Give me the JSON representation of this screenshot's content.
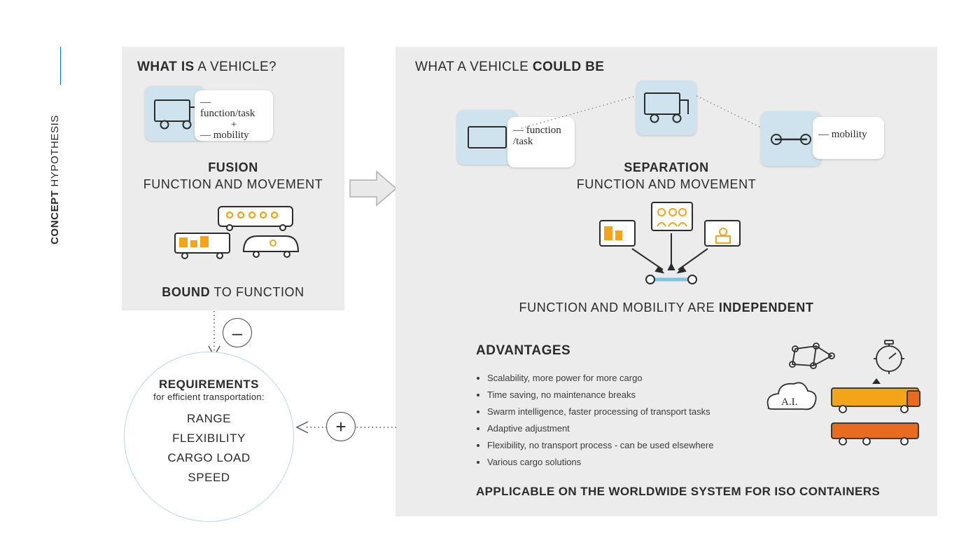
{
  "colors": {
    "panel": "#ececec",
    "card_blue": "#cfe3ef",
    "card_white": "#ffffff",
    "accent": "#0077c8",
    "circle_border": "#b9d8e7",
    "text": "#2b2b2b",
    "arrow_fill": "#e9e9e9",
    "arrow_stroke": "#b0b0b0",
    "yellow": "#f3a419",
    "orange": "#e96b1f"
  },
  "sidebar": {
    "bold": "CONCEPT",
    "light": " HYPOTHESIS"
  },
  "left_panel": {
    "title_bold": "WHAT IS",
    "title_light": " A VEHICLE?",
    "card_note_line1": "— function/task",
    "card_note_plus": "+",
    "card_note_line2": "— mobility",
    "cap1_bold": "FUSION",
    "cap1_line2": "FUNCTION AND MOVEMENT",
    "cap2_bold": "BOUND",
    "cap2_rest": " TO FUNCTION"
  },
  "right_panel": {
    "title_light": "WHAT A VEHICLE ",
    "title_bold": "COULD BE",
    "note_left": "— function /task",
    "note_right": "— mobility",
    "cap1_bold": "SEPARATION",
    "cap1_line2": "FUNCTION AND MOVEMENT",
    "cap2_pre": "FUNCTION AND MOBILITY ARE ",
    "cap2_bold": "INDEPENDENT"
  },
  "badges": {
    "minus": "–",
    "plus": "+"
  },
  "requirements": {
    "title": "REQUIREMENTS",
    "subtitle": "for efficient transportation:",
    "items": [
      "RANGE",
      "FLEXIBILITY",
      "CARGO LOAD",
      "SPEED"
    ]
  },
  "advantages": {
    "title": "ADVANTAGES",
    "items": [
      "Scalability, more power for more cargo",
      "Time saving, no maintenance breaks",
      "Swarm intelligence, faster processing of transport tasks",
      "Adaptive adjustment",
      "Flexibility, no transport process - can be used elsewhere",
      "Various cargo solutions"
    ],
    "ai_label": "A.I."
  },
  "footer": "APPLICABLE ON THE WORLDWIDE SYSTEM FOR ISO CONTAINERS"
}
